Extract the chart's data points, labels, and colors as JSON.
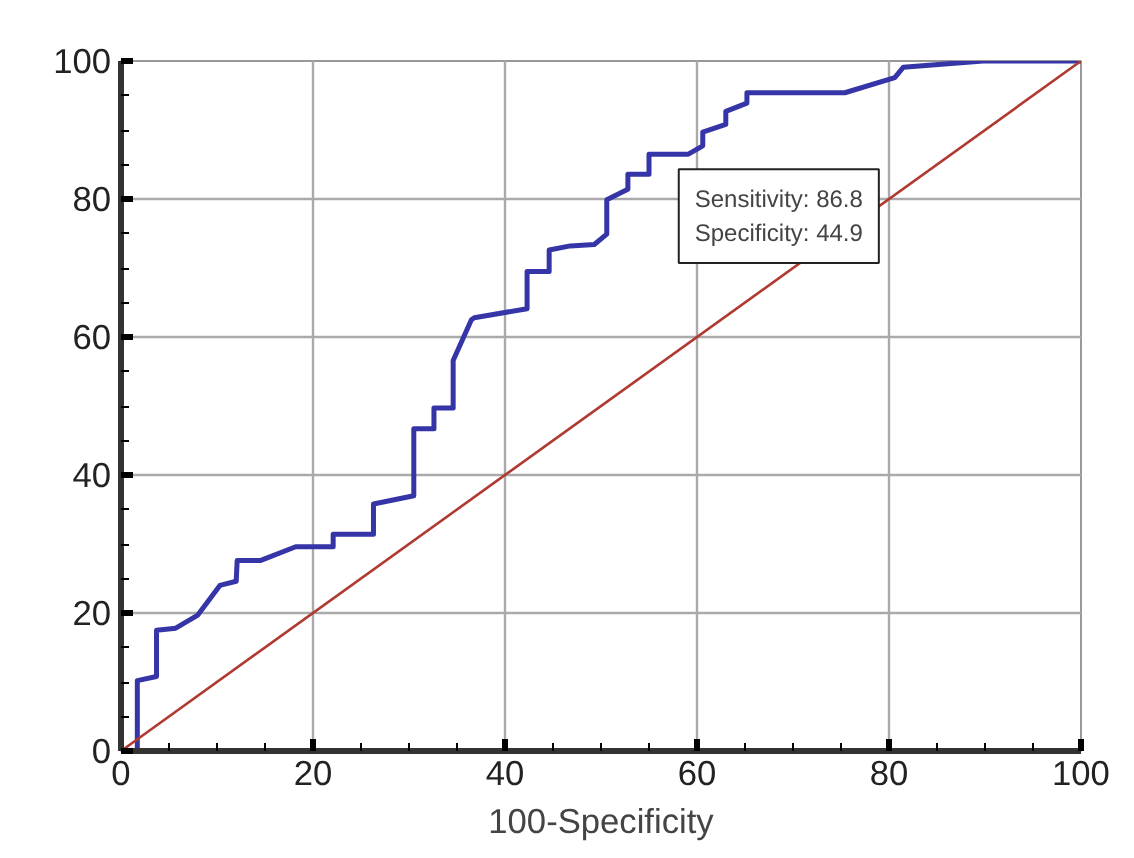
{
  "chart_data": {
    "type": "step",
    "xlabel": "100-Specificity",
    "xlim": [
      0,
      100
    ],
    "ylim": [
      0,
      100
    ],
    "xticks": [
      0,
      20,
      40,
      60,
      80,
      100
    ],
    "yticks": [
      0,
      20,
      40,
      60,
      80,
      100
    ],
    "grid": true,
    "series": [
      {
        "color": "#3535a8",
        "x": [
          0,
          1.7,
          1.7,
          3.7,
          3.7,
          5.7,
          8,
          10.3,
          12,
          12.1,
          14.5,
          18.2,
          22.1,
          22.1,
          26.3,
          26.3,
          30.5,
          30.5,
          32.6,
          32.6,
          34.6,
          34.6,
          36.5,
          36.8,
          42.3,
          42.3,
          44.6,
          44.6,
          46.8,
          49.3,
          50.6,
          50.6,
          52.8,
          52.8,
          55,
          55,
          59.1,
          60.6,
          60.6,
          63,
          63,
          65.2,
          65.2,
          75.4,
          80.6,
          81.5,
          89.8,
          100
        ],
        "values": [
          0,
          0,
          10.2,
          10.8,
          17.5,
          17.8,
          19.7,
          24,
          24.6,
          27.6,
          27.6,
          29.6,
          29.6,
          31.4,
          31.4,
          35.8,
          37,
          46.7,
          46.7,
          49.7,
          49.7,
          56.6,
          62.5,
          62.8,
          64.1,
          69.5,
          69.5,
          72.6,
          73.2,
          73.4,
          74.9,
          79.9,
          81.4,
          83.6,
          83.6,
          86.5,
          86.5,
          87.7,
          89.7,
          90.8,
          92.7,
          93.9,
          95.4,
          95.4,
          97.6,
          99.1,
          100,
          100
        ]
      },
      {
        "type": "line",
        "color": "#b03a32",
        "x": [
          0,
          100
        ],
        "values": [
          0,
          100
        ]
      }
    ],
    "annotations": [
      {
        "text": "Sensitivity: 86.8\nSpecificity: 44.9",
        "x": 55.1,
        "y": 86.8
      }
    ]
  }
}
